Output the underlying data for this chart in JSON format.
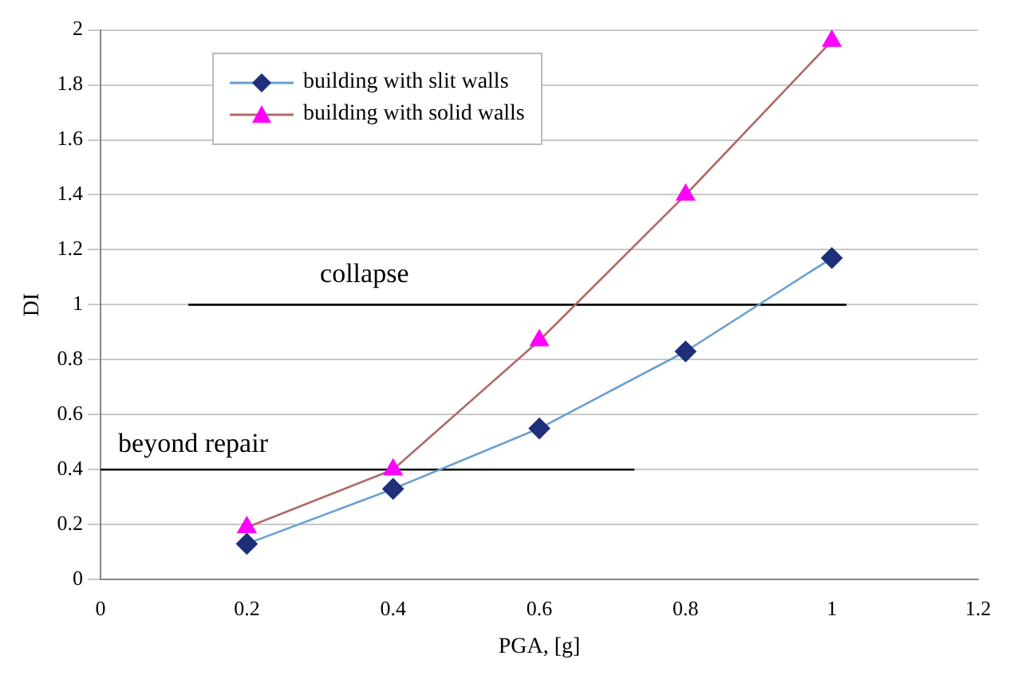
{
  "chart_data": {
    "type": "line",
    "xlabel": "PGA, [g]",
    "ylabel": "DI",
    "xlim": [
      0,
      1.2
    ],
    "xticks": [
      0,
      0.2,
      0.4,
      0.6,
      0.8,
      1,
      1.2
    ],
    "ylim": [
      0,
      2
    ],
    "yticks": [
      0,
      0.2,
      0.4,
      0.6,
      0.8,
      1,
      1.2,
      1.4,
      1.6,
      1.8,
      2
    ],
    "grid": "y",
    "legend": "top left",
    "x": [
      0.2,
      0.4,
      0.6,
      0.8,
      1
    ],
    "series": [
      {
        "name": "building with slit walls",
        "color": "#6a9fd0",
        "colors": [
          "#1f2f7a",
          "#1f2f7a",
          "#1f2f7a",
          "#1f2f7a",
          "#1f2f7a"
        ],
        "marker": "diamond",
        "values": [
          0.13,
          0.33,
          0.55,
          0.83,
          1.17
        ]
      },
      {
        "name": "building with solid walls",
        "color": "#b06a6a",
        "colors": [
          "#ff00ff",
          "#ff00ff",
          "#ff00ff",
          "#ff00ff",
          "#ff00ff"
        ],
        "marker": "triangle",
        "values": [
          0.19,
          0.4,
          0.87,
          1.4,
          1.96
        ]
      },
      {
        "color": "#000000",
        "marker": "none",
        "x": [
          0.12,
          1.02
        ],
        "values": [
          1,
          1
        ]
      },
      {
        "color": "#000000",
        "marker": "none",
        "x": [
          0,
          0.73
        ],
        "values": [
          0.4,
          0.4
        ]
      }
    ],
    "annotations": [
      "collapse",
      "beyond repair"
    ]
  }
}
